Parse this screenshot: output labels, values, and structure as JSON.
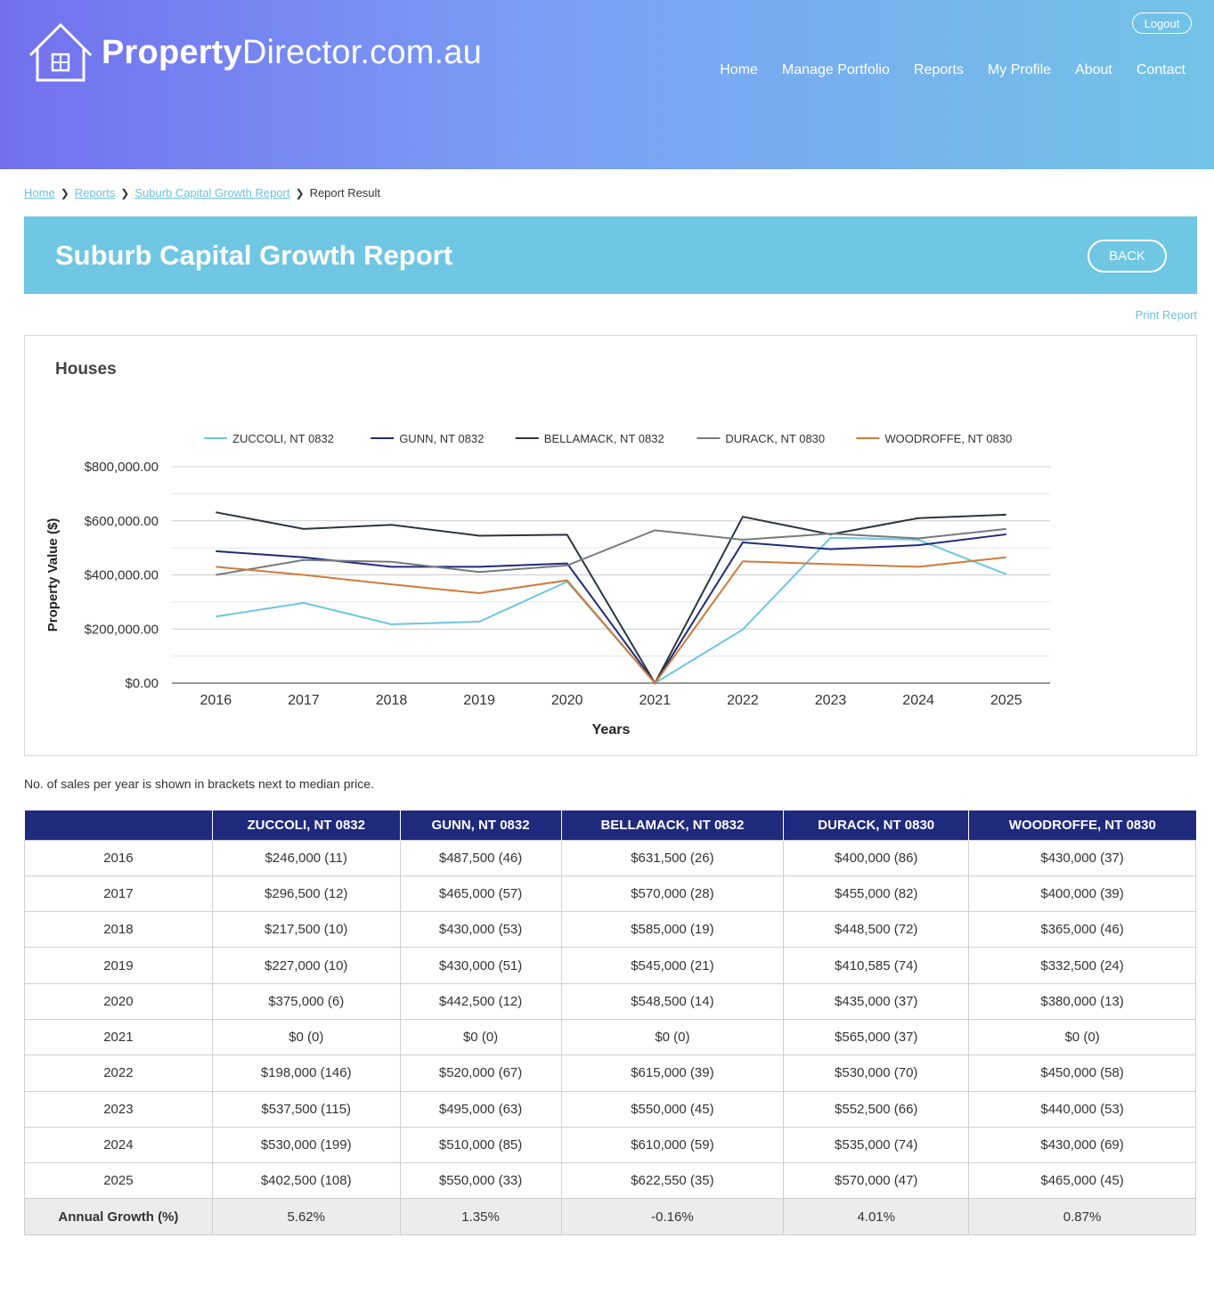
{
  "header": {
    "logo_bold": "Property",
    "logo_rest": "Director.com.au",
    "logout_label": "Logout",
    "nav": [
      "Home",
      "Manage Portfolio",
      "Reports",
      "My Profile",
      "About",
      "Contact"
    ]
  },
  "breadcrumb": {
    "items": [
      "Home",
      "Reports",
      "Suburb Capital Growth Report"
    ],
    "current": "Report Result"
  },
  "page": {
    "title": "Suburb Capital Growth Report",
    "back_label": "BACK",
    "print_label": "Print Report",
    "note": "No. of sales per year is shown in brackets next to median price."
  },
  "chart_data": {
    "type": "line",
    "title": "Houses",
    "xlabel": "Years",
    "ylabel": "Property Value ($)",
    "ylim": [
      0,
      800000
    ],
    "yticks": [
      "$0.00",
      "$200,000.00",
      "$400,000.00",
      "$600,000.00",
      "$800,000.00"
    ],
    "legend_position": "top",
    "grid": true,
    "x": [
      "2016",
      "2017",
      "2018",
      "2019",
      "2020",
      "2021",
      "2022",
      "2023",
      "2024",
      "2025"
    ],
    "series": [
      {
        "name": "ZUCCOLI, NT 0832",
        "color": "#6ec6e0",
        "values": [
          246000,
          296500,
          217500,
          227000,
          375000,
          0,
          198000,
          537500,
          530000,
          402500
        ]
      },
      {
        "name": "GUNN, NT 0832",
        "color": "#1f2a7c",
        "values": [
          487500,
          465000,
          430000,
          430000,
          442500,
          0,
          520000,
          495000,
          510000,
          550000
        ]
      },
      {
        "name": "BELLAMACK, NT 0832",
        "color": "#2b3440",
        "values": [
          631500,
          570000,
          585000,
          545000,
          548500,
          0,
          615000,
          550000,
          610000,
          622550
        ]
      },
      {
        "name": "DURACK, NT 0830",
        "color": "#777a7c",
        "values": [
          400000,
          455000,
          448500,
          410585,
          435000,
          565000,
          530000,
          552500,
          535000,
          570000
        ]
      },
      {
        "name": "WOODROFFE, NT 0830",
        "color": "#d07a3a",
        "values": [
          430000,
          400000,
          365000,
          332500,
          380000,
          0,
          450000,
          440000,
          430000,
          465000
        ]
      }
    ]
  },
  "table": {
    "headers": [
      "",
      "ZUCCOLI, NT 0832",
      "GUNN, NT 0832",
      "BELLAMACK, NT 0832",
      "DURACK, NT 0830",
      "WOODROFFE, NT 0830"
    ],
    "rows": [
      [
        "2016",
        "$246,000 (11)",
        "$487,500 (46)",
        "$631,500 (26)",
        "$400,000 (86)",
        "$430,000 (37)"
      ],
      [
        "2017",
        "$296,500 (12)",
        "$465,000 (57)",
        "$570,000 (28)",
        "$455,000 (82)",
        "$400,000 (39)"
      ],
      [
        "2018",
        "$217,500 (10)",
        "$430,000 (53)",
        "$585,000 (19)",
        "$448,500 (72)",
        "$365,000 (46)"
      ],
      [
        "2019",
        "$227,000 (10)",
        "$430,000 (51)",
        "$545,000 (21)",
        "$410,585 (74)",
        "$332,500 (24)"
      ],
      [
        "2020",
        "$375,000 (6)",
        "$442,500 (12)",
        "$548,500 (14)",
        "$435,000 (37)",
        "$380,000 (13)"
      ],
      [
        "2021",
        "$0 (0)",
        "$0 (0)",
        "$0 (0)",
        "$565,000 (37)",
        "$0 (0)"
      ],
      [
        "2022",
        "$198,000 (146)",
        "$520,000 (67)",
        "$615,000 (39)",
        "$530,000 (70)",
        "$450,000 (58)"
      ],
      [
        "2023",
        "$537,500 (115)",
        "$495,000 (63)",
        "$550,000 (45)",
        "$552,500 (66)",
        "$440,000 (53)"
      ],
      [
        "2024",
        "$530,000 (199)",
        "$510,000 (85)",
        "$610,000 (59)",
        "$535,000 (74)",
        "$430,000 (69)"
      ],
      [
        "2025",
        "$402,500 (108)",
        "$550,000 (33)",
        "$622,550 (35)",
        "$570,000 (47)",
        "$465,000 (45)"
      ]
    ],
    "growth": [
      "Annual Growth (%)",
      "5.62%",
      "1.35%",
      "-0.16%",
      "4.01%",
      "0.87%"
    ]
  }
}
